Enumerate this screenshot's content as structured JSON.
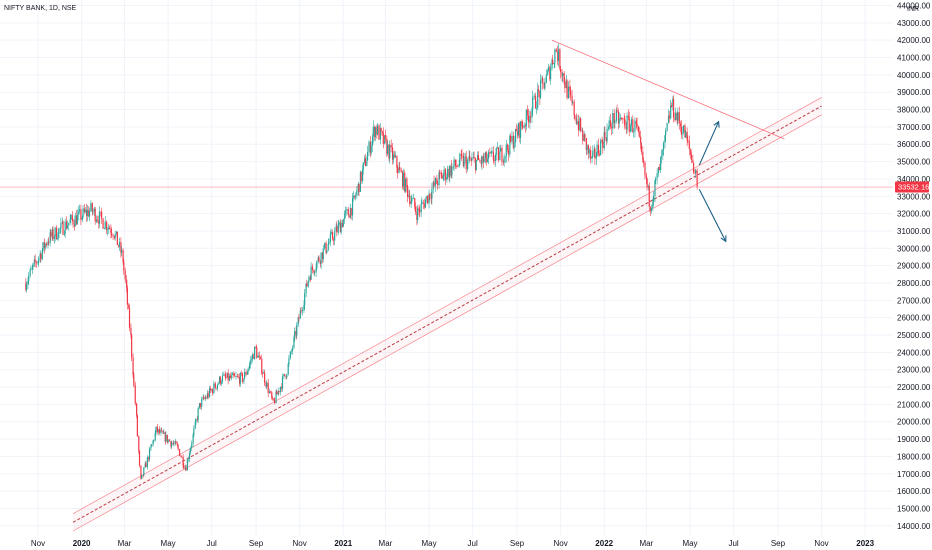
{
  "header": {
    "symbol_title": "NIFTY BANK, 1D, NSE",
    "currency": "INR"
  },
  "price_badge": {
    "value": "33532.16",
    "color": "#f23645"
  },
  "colors": {
    "up": "#26a69a",
    "down": "#f23645",
    "channel": "#f23645",
    "arrow": "#1e5f87",
    "grid": "#f0f3fa"
  },
  "icons": [
    "arrow-up-icon",
    "arrow-down-icon"
  ],
  "chart_data": {
    "type": "candlestick",
    "y_axis_labels": [
      "44000.00",
      "43000.00",
      "42000.00",
      "41000.00",
      "40000.00",
      "39000.00",
      "38000.00",
      "37000.00",
      "36000.00",
      "35000.00",
      "34000.00",
      "33000.00",
      "32000.00",
      "31000.00",
      "30000.00",
      "29000.00",
      "28000.00",
      "27000.00",
      "26000.00",
      "25000.00",
      "24000.00",
      "23000.00",
      "22000.00",
      "21000.00",
      "20000.00",
      "19000.00",
      "18000.00",
      "17000.00",
      "16000.00",
      "15000.00",
      "14000.00"
    ],
    "ylim": [
      14000,
      44000
    ],
    "x_axis_labels": [
      {
        "text": "Nov",
        "bold": false
      },
      {
        "text": "2020",
        "bold": true
      },
      {
        "text": "Mar",
        "bold": false
      },
      {
        "text": "May",
        "bold": false
      },
      {
        "text": "Jul",
        "bold": false
      },
      {
        "text": "Sep",
        "bold": false
      },
      {
        "text": "Nov",
        "bold": false
      },
      {
        "text": "2021",
        "bold": true
      },
      {
        "text": "Mar",
        "bold": false
      },
      {
        "text": "May",
        "bold": false
      },
      {
        "text": "Jul",
        "bold": false
      },
      {
        "text": "Sep",
        "bold": false
      },
      {
        "text": "Nov",
        "bold": false
      },
      {
        "text": "2022",
        "bold": true
      },
      {
        "text": "Mar",
        "bold": false
      },
      {
        "text": "May",
        "bold": false
      },
      {
        "text": "Jul",
        "bold": false
      },
      {
        "text": "Sep",
        "bold": false
      },
      {
        "text": "Nov",
        "bold": false
      },
      {
        "text": "2023",
        "bold": true
      }
    ],
    "price_path": [
      [
        "2019-10-15",
        28000
      ],
      [
        "2019-11-15",
        30500
      ],
      [
        "2019-12-15",
        31500
      ],
      [
        "2020-01-15",
        32200
      ],
      [
        "2020-02-15",
        31000
      ],
      [
        "2020-02-28",
        29500
      ],
      [
        "2020-03-10",
        25000
      ],
      [
        "2020-03-24",
        16500
      ],
      [
        "2020-04-15",
        19500
      ],
      [
        "2020-05-15",
        18500
      ],
      [
        "2020-05-26",
        17300
      ],
      [
        "2020-06-15",
        21000
      ],
      [
        "2020-07-15",
        22500
      ],
      [
        "2020-08-15",
        22500
      ],
      [
        "2020-09-01",
        24200
      ],
      [
        "2020-09-25",
        21000
      ],
      [
        "2020-10-15",
        23000
      ],
      [
        "2020-11-15",
        28500
      ],
      [
        "2020-12-15",
        30500
      ],
      [
        "2021-01-15",
        32500
      ],
      [
        "2021-02-05",
        35500
      ],
      [
        "2021-02-15",
        37000
      ],
      [
        "2021-03-15",
        35000
      ],
      [
        "2021-04-15",
        32000
      ],
      [
        "2021-05-15",
        34000
      ],
      [
        "2021-06-15",
        35000
      ],
      [
        "2021-07-15",
        35000
      ],
      [
        "2021-08-15",
        35500
      ],
      [
        "2021-09-15",
        37500
      ],
      [
        "2021-10-15",
        40000
      ],
      [
        "2021-10-26",
        41500
      ],
      [
        "2021-11-15",
        38500
      ],
      [
        "2021-12-15",
        35000
      ],
      [
        "2022-01-15",
        37500
      ],
      [
        "2022-02-15",
        37000
      ],
      [
        "2022-03-07",
        32500
      ],
      [
        "2022-03-25",
        35500
      ],
      [
        "2022-04-05",
        38300
      ],
      [
        "2022-04-25",
        36500
      ],
      [
        "2022-05-10",
        34200
      ],
      [
        "2022-05-12",
        33532
      ]
    ],
    "trendlines": [
      {
        "name": "channel-upper",
        "from": [
          "2019-12-20",
          14700
        ],
        "to": [
          "2022-11-01",
          38700
        ]
      },
      {
        "name": "channel-mid",
        "from": [
          "2019-12-20",
          14200
        ],
        "to": [
          "2022-11-01",
          38200
        ]
      },
      {
        "name": "channel-lower",
        "from": [
          "2019-12-20",
          13700
        ],
        "to": [
          "2022-11-01",
          37700
        ]
      },
      {
        "name": "resistance",
        "from": [
          "2021-10-20",
          42000
        ],
        "to": [
          "2022-09-10",
          36300
        ]
      }
    ],
    "arrows": [
      {
        "name": "breakout-arrow",
        "from": [
          "2022-05-14",
          34800
        ],
        "to": [
          "2022-06-10",
          37300
        ]
      },
      {
        "name": "breakdown-arrow",
        "from": [
          "2022-05-14",
          33400
        ],
        "to": [
          "2022-06-20",
          30400
        ]
      }
    ],
    "last_price": 33532.16
  }
}
